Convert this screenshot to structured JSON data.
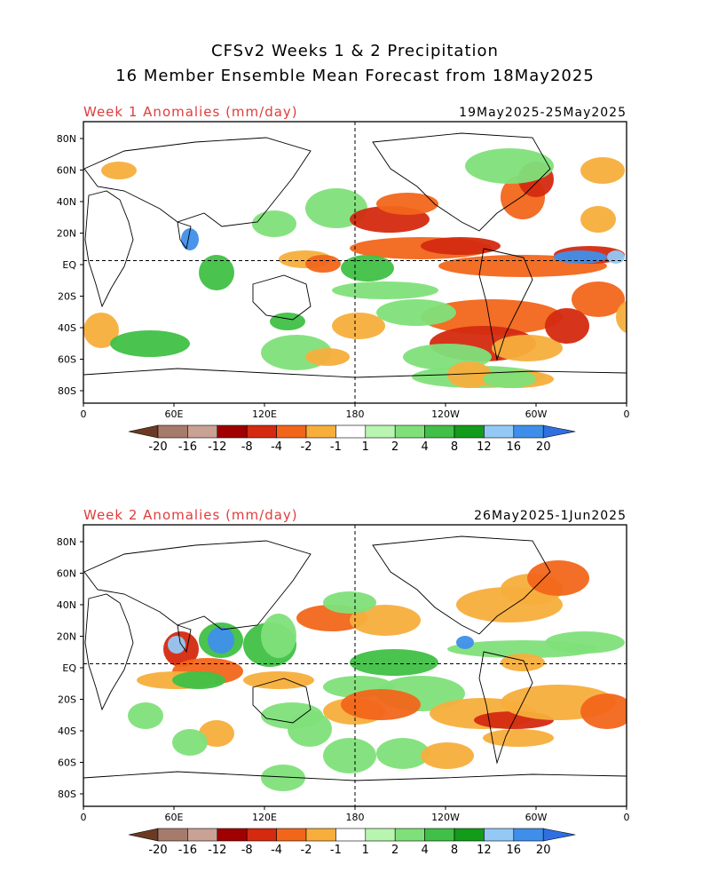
{
  "title": {
    "line1": "CFSv2 Weeks 1 & 2 Precipitation",
    "line2": "16 Member Ensemble Mean Forecast from 18May2025"
  },
  "panels": [
    {
      "label": "Week 1 Anomalies (mm/day)",
      "dates": "19May2025-25May2025"
    },
    {
      "label": "Week 2 Anomalies (mm/day)",
      "dates": "26May2025-1Jun2025"
    }
  ],
  "axes": {
    "lat_labels": [
      "80N",
      "60N",
      "40N",
      "20N",
      "EQ",
      "20S",
      "40S",
      "60S",
      "80S"
    ],
    "lon_labels": [
      "0",
      "60E",
      "120E",
      "180",
      "120W",
      "60W",
      "0"
    ]
  },
  "colorbar": {
    "labels": [
      "-20",
      "-16",
      "-12",
      "-8",
      "-4",
      "-2",
      "-1",
      "1",
      "2",
      "4",
      "8",
      "12",
      "16",
      "20"
    ],
    "colors": [
      "#6b3a22",
      "#a77b6b",
      "#c9a195",
      "#a00000",
      "#d42a10",
      "#f2661a",
      "#f7ae3c",
      "#ffffff",
      "#b8f5b0",
      "#7fe07a",
      "#40c046",
      "#139c1a",
      "#94c9f5",
      "#3f8fea",
      "#2f6fe0"
    ]
  },
  "colors": {
    "label_red": "#e03c3c"
  }
}
